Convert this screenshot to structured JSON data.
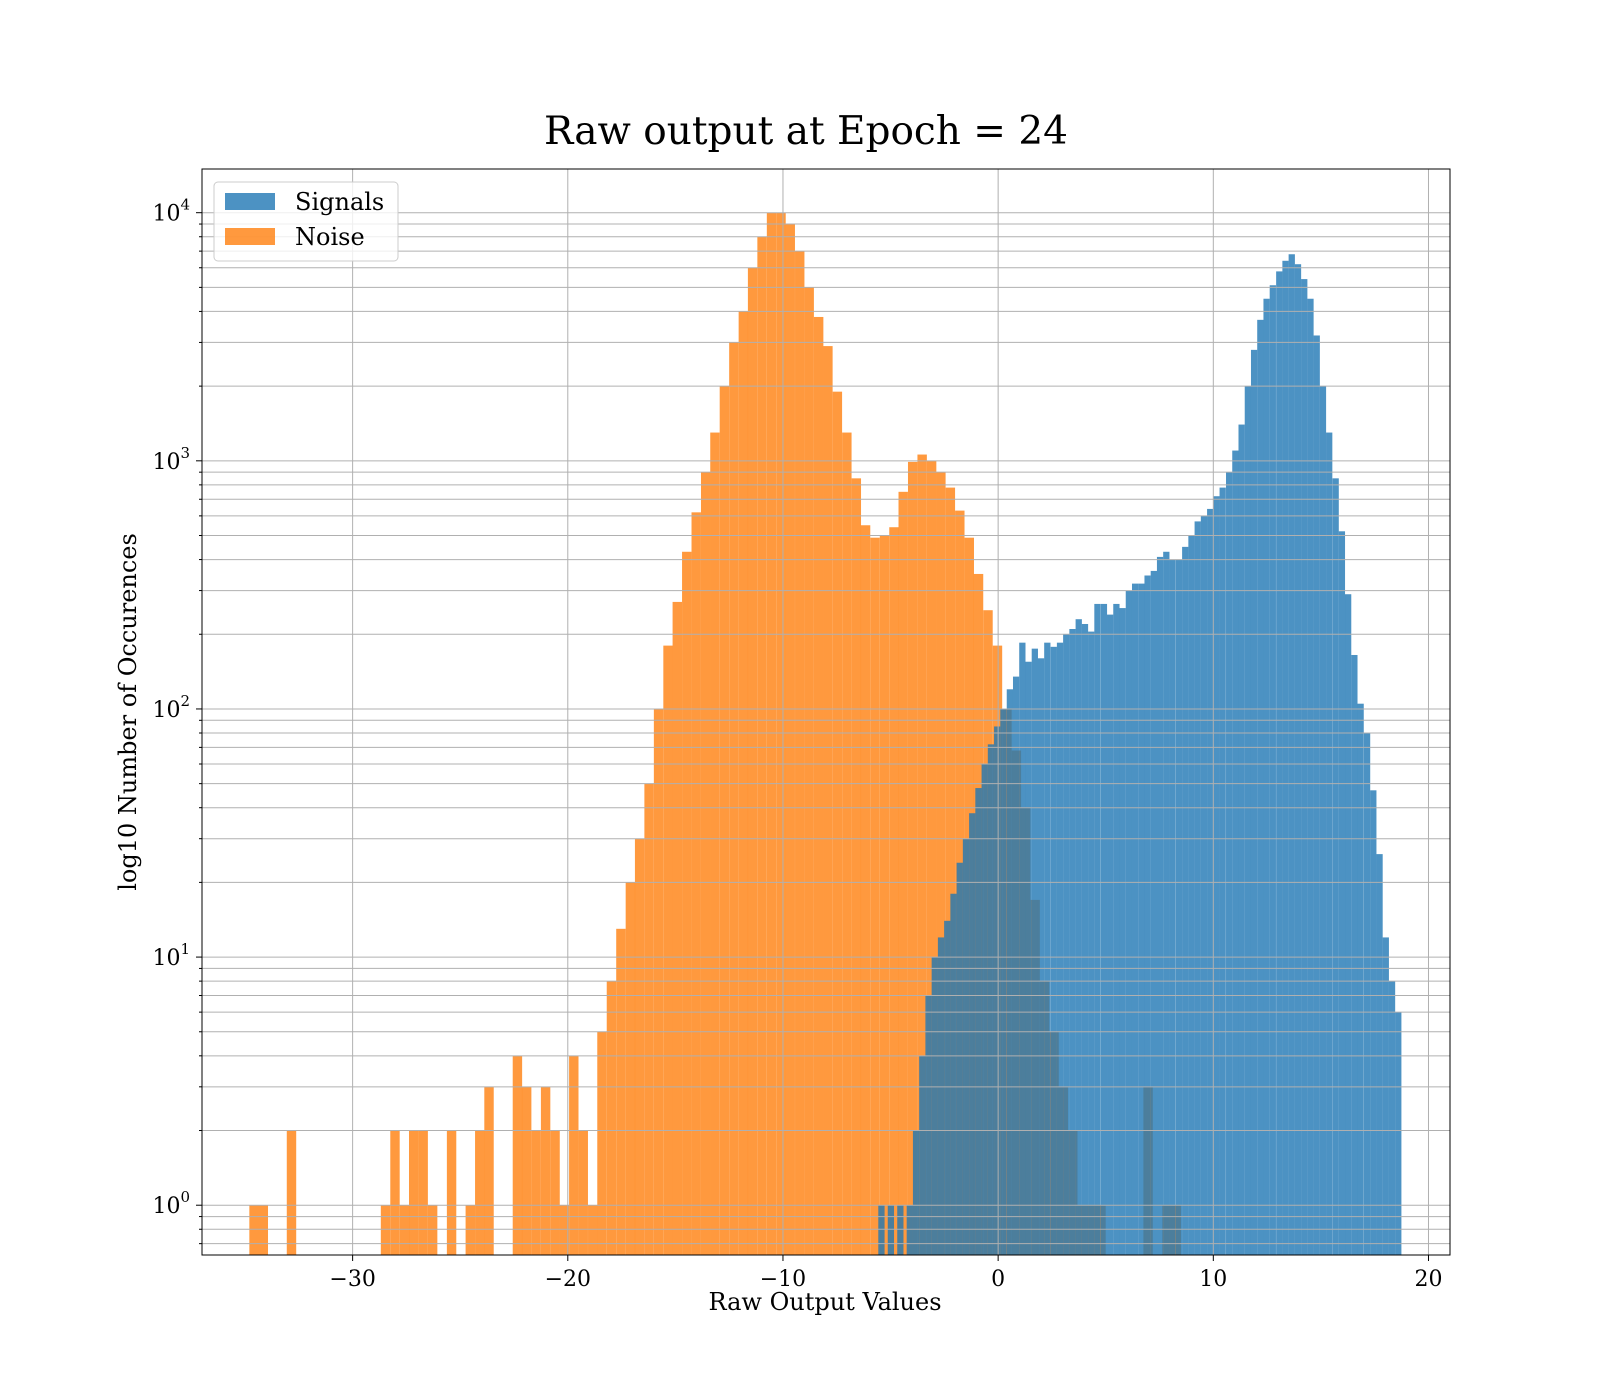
{
  "chart_data": {
    "type": "histogram",
    "title": "Raw output at Epoch = 24",
    "xlabel": "Raw Output Values",
    "ylabel": "log10 Number of Occurences",
    "xlim": [
      -37,
      21
    ],
    "ylim": [
      0.63,
      15000
    ],
    "yscale": "log",
    "grid": true,
    "legend_position": "upper left",
    "x_ticks": [
      {
        "value": -30,
        "label": "−30"
      },
      {
        "value": -20,
        "label": "−20"
      },
      {
        "value": -10,
        "label": "−10"
      },
      {
        "value": 0,
        "label": "0"
      },
      {
        "value": 10,
        "label": "10"
      },
      {
        "value": 20,
        "label": "20"
      }
    ],
    "y_ticks": [
      {
        "value": 1,
        "base": "10",
        "exp": "0"
      },
      {
        "value": 10,
        "base": "10",
        "exp": "1"
      },
      {
        "value": 100,
        "base": "10",
        "exp": "2"
      },
      {
        "value": 1000,
        "base": "10",
        "exp": "3"
      },
      {
        "value": 10000,
        "base": "10",
        "exp": "4"
      }
    ],
    "series": [
      {
        "name": "Noise",
        "color": "#ff7f0e",
        "bin_width": 0.4377,
        "bins": [
          [
            -34.8,
            1
          ],
          [
            -34.37,
            1
          ],
          [
            -33.06,
            2
          ],
          [
            -28.69,
            1
          ],
          [
            -28.25,
            2
          ],
          [
            -27.81,
            1
          ],
          [
            -27.38,
            2
          ],
          [
            -26.94,
            2
          ],
          [
            -26.5,
            1
          ],
          [
            -25.62,
            2
          ],
          [
            -24.75,
            1
          ],
          [
            -24.31,
            2
          ],
          [
            -23.88,
            3
          ],
          [
            -22.56,
            4
          ],
          [
            -22.13,
            3
          ],
          [
            -21.69,
            2
          ],
          [
            -21.25,
            3
          ],
          [
            -20.81,
            2
          ],
          [
            -20.38,
            1
          ],
          [
            -19.94,
            4
          ],
          [
            -19.5,
            2
          ],
          [
            -19.06,
            1
          ],
          [
            -18.63,
            5
          ],
          [
            -18.19,
            8
          ],
          [
            -17.75,
            13
          ],
          [
            -17.31,
            20
          ],
          [
            -16.88,
            30
          ],
          [
            -16.44,
            50
          ],
          [
            -16.0,
            100
          ],
          [
            -15.56,
            180
          ],
          [
            -15.13,
            270
          ],
          [
            -14.69,
            430
          ],
          [
            -14.25,
            620
          ],
          [
            -13.81,
            900
          ],
          [
            -13.38,
            1300
          ],
          [
            -12.94,
            2000
          ],
          [
            -12.5,
            3000
          ],
          [
            -12.06,
            4000
          ],
          [
            -11.63,
            6000
          ],
          [
            -11.19,
            8000
          ],
          [
            -10.75,
            10000
          ],
          [
            -10.31,
            10000
          ],
          [
            -9.88,
            9000
          ],
          [
            -9.44,
            7000
          ],
          [
            -9.0,
            5000
          ],
          [
            -8.56,
            3800
          ],
          [
            -8.13,
            2900
          ],
          [
            -7.69,
            1900
          ],
          [
            -7.25,
            1300
          ],
          [
            -6.81,
            850
          ],
          [
            -6.38,
            550
          ],
          [
            -5.94,
            490
          ],
          [
            -5.5,
            500
          ],
          [
            -5.06,
            540
          ],
          [
            -4.63,
            750
          ],
          [
            -4.19,
            990
          ],
          [
            -3.75,
            1060
          ],
          [
            -3.31,
            1000
          ],
          [
            -2.88,
            900
          ],
          [
            -2.44,
            780
          ],
          [
            -2.0,
            630
          ],
          [
            -1.56,
            490
          ],
          [
            -1.13,
            350
          ],
          [
            -0.69,
            250
          ],
          [
            -0.25,
            180
          ],
          [
            0.19,
            100
          ],
          [
            0.63,
            68
          ],
          [
            1.06,
            40
          ],
          [
            1.5,
            17
          ],
          [
            1.94,
            8
          ],
          [
            2.38,
            5
          ],
          [
            2.81,
            3
          ],
          [
            3.25,
            2
          ],
          [
            3.69,
            1
          ],
          [
            4.13,
            1
          ],
          [
            4.56,
            1
          ],
          [
            6.75,
            3
          ],
          [
            7.63,
            1
          ],
          [
            8.06,
            1
          ]
        ]
      },
      {
        "name": "Signals",
        "color": "#1f77b4",
        "bin_width": 0.2918,
        "bins": [
          [
            -5.57,
            1
          ],
          [
            -5.13,
            1
          ],
          [
            -4.69,
            1
          ],
          [
            -4.25,
            1
          ],
          [
            -3.96,
            2
          ],
          [
            -3.67,
            4
          ],
          [
            -3.38,
            7
          ],
          [
            -3.09,
            10
          ],
          [
            -2.8,
            12
          ],
          [
            -2.51,
            14
          ],
          [
            -2.22,
            18
          ],
          [
            -1.93,
            24
          ],
          [
            -1.64,
            30
          ],
          [
            -1.35,
            38
          ],
          [
            -1.06,
            48
          ],
          [
            -0.77,
            60
          ],
          [
            -0.48,
            72
          ],
          [
            -0.19,
            85
          ],
          [
            0.1,
            100
          ],
          [
            0.4,
            120
          ],
          [
            0.69,
            135
          ],
          [
            0.98,
            185
          ],
          [
            1.27,
            155
          ],
          [
            1.56,
            175
          ],
          [
            1.85,
            160
          ],
          [
            2.14,
            185
          ],
          [
            2.44,
            178
          ],
          [
            2.73,
            185
          ],
          [
            3.02,
            200
          ],
          [
            3.31,
            210
          ],
          [
            3.6,
            230
          ],
          [
            3.89,
            220
          ],
          [
            4.18,
            205
          ],
          [
            4.47,
            265
          ],
          [
            4.77,
            265
          ],
          [
            5.06,
            240
          ],
          [
            5.35,
            265
          ],
          [
            5.64,
            255
          ],
          [
            5.93,
            300
          ],
          [
            6.22,
            320
          ],
          [
            6.51,
            320
          ],
          [
            6.8,
            345
          ],
          [
            7.09,
            360
          ],
          [
            7.38,
            410
          ],
          [
            7.67,
            430
          ],
          [
            7.96,
            400
          ],
          [
            8.26,
            400
          ],
          [
            8.55,
            450
          ],
          [
            8.84,
            500
          ],
          [
            9.13,
            570
          ],
          [
            9.42,
            600
          ],
          [
            9.71,
            640
          ],
          [
            10.0,
            720
          ],
          [
            10.29,
            780
          ],
          [
            10.59,
            900
          ],
          [
            10.88,
            1100
          ],
          [
            11.17,
            1400
          ],
          [
            11.46,
            2000
          ],
          [
            11.75,
            2800
          ],
          [
            12.04,
            3700
          ],
          [
            12.33,
            4500
          ],
          [
            12.62,
            5100
          ],
          [
            12.92,
            5800
          ],
          [
            13.21,
            6400
          ],
          [
            13.5,
            6800
          ],
          [
            13.79,
            6200
          ],
          [
            14.08,
            5400
          ],
          [
            14.37,
            4500
          ],
          [
            14.66,
            3200
          ],
          [
            14.95,
            2000
          ],
          [
            15.24,
            1300
          ],
          [
            15.54,
            850
          ],
          [
            15.83,
            520
          ],
          [
            16.12,
            290
          ],
          [
            16.41,
            165
          ],
          [
            16.7,
            105
          ],
          [
            17.0,
            80
          ],
          [
            17.29,
            47
          ],
          [
            17.58,
            26
          ],
          [
            17.87,
            12
          ],
          [
            18.16,
            8
          ],
          [
            18.45,
            6
          ]
        ]
      }
    ]
  },
  "legend": {
    "items": [
      {
        "label": "Signals",
        "color": "#1f77b4"
      },
      {
        "label": "Noise",
        "color": "#ff7f0e"
      }
    ]
  }
}
